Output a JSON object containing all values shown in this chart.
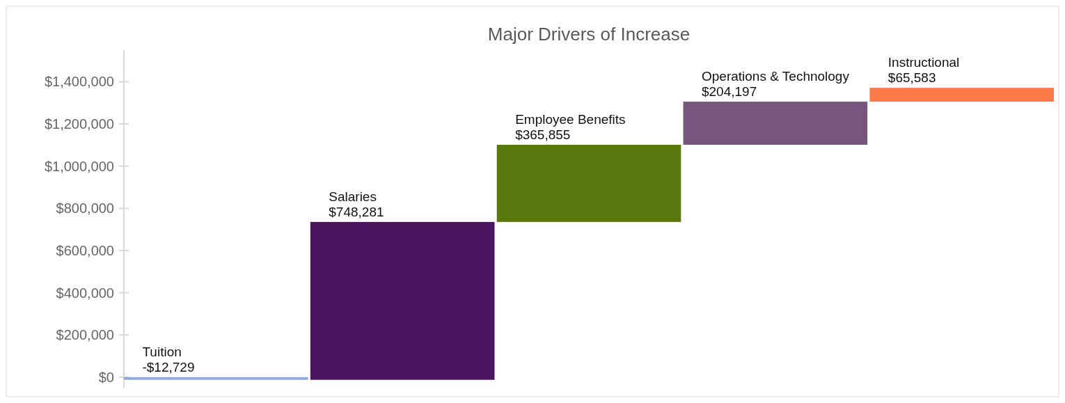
{
  "chart_data": {
    "type": "bar",
    "title": "Major Drivers of Increase",
    "categories": [
      "Tuition",
      "Salaries",
      "Employee Benefits",
      "Operations & Technology",
      "Instructional"
    ],
    "values": [
      -12729,
      748281,
      365855,
      204197,
      65583
    ],
    "base": [
      0,
      -12729,
      735552,
      1101407,
      1305604
    ],
    "colors": [
      "#8ea9e0",
      "#4a155e",
      "#59790f",
      "#77557e",
      "#fb7a47"
    ],
    "value_labels": [
      "-$12,729",
      "$748,281",
      "$365,855",
      "$204,197",
      "$65,583"
    ],
    "ylim": [
      -50000,
      1550000
    ],
    "yticks": [
      {
        "value": 0,
        "label": "$0"
      },
      {
        "value": 200000,
        "label": "$200,000"
      },
      {
        "value": 400000,
        "label": "$400,000"
      },
      {
        "value": 600000,
        "label": "$600,000"
      },
      {
        "value": 800000,
        "label": "$800,000"
      },
      {
        "value": 1000000,
        "label": "$1,000,000"
      },
      {
        "value": 1200000,
        "label": "$1,200,000"
      },
      {
        "value": 1400000,
        "label": "$1,400,000"
      }
    ],
    "grid": false
  }
}
